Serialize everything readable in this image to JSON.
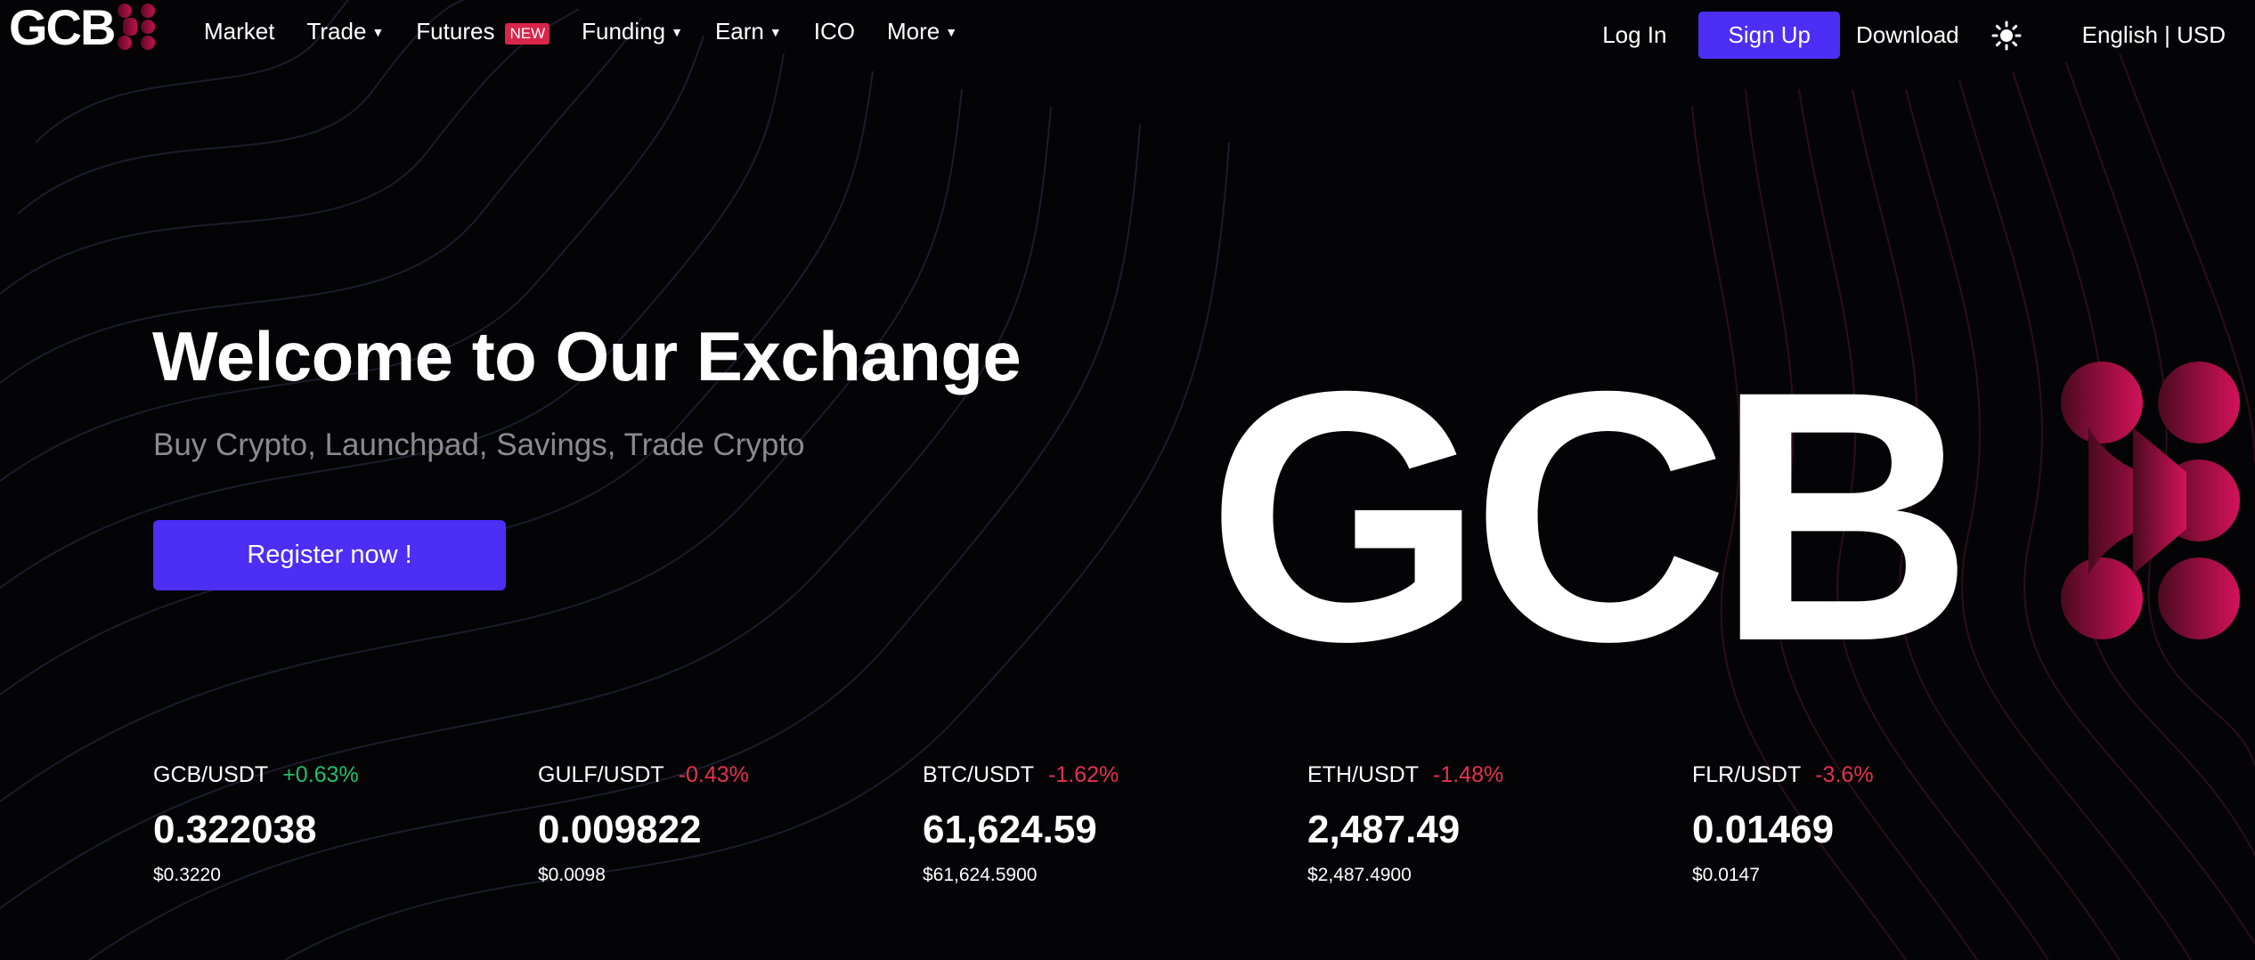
{
  "nav": {
    "logo": "GCB",
    "items": [
      {
        "label": "Market",
        "caret": false
      },
      {
        "label": "Trade",
        "caret": true
      },
      {
        "label": "Futures",
        "caret": false,
        "badge": "NEW"
      },
      {
        "label": "Funding",
        "caret": true
      },
      {
        "label": "Earn",
        "caret": true
      },
      {
        "label": "ICO",
        "caret": false
      },
      {
        "label": "More",
        "caret": true
      }
    ],
    "login": "Log In",
    "signup": "Sign Up",
    "download": "Download",
    "theme_icon": "sun-icon",
    "language": "English | USD"
  },
  "hero": {
    "title": "Welcome to Our Exchange",
    "subtitle": "Buy Crypto, Launchpad, Savings, Trade Crypto",
    "cta": "Register now !",
    "logo_text": "GCB"
  },
  "tickers": [
    {
      "pair": "GCB/USDT",
      "change": "+0.63%",
      "direction": "up",
      "price": "0.322038",
      "usd": "$0.3220"
    },
    {
      "pair": "GULF/USDT",
      "change": "-0.43%",
      "direction": "down",
      "price": "0.009822",
      "usd": "$0.0098"
    },
    {
      "pair": "BTC/USDT",
      "change": "-1.62%",
      "direction": "down",
      "price": "61,624.59",
      "usd": "$61,624.5900"
    },
    {
      "pair": "ETH/USDT",
      "change": "-1.48%",
      "direction": "down",
      "price": "2,487.49",
      "usd": "$2,487.4900"
    },
    {
      "pair": "FLR/USDT",
      "change": "-3.6%",
      "direction": "down",
      "price": "0.01469",
      "usd": "$0.0147"
    }
  ],
  "colors": {
    "background": "#040406",
    "accent": "#4c2ef5",
    "brand_magenta": "#c2104f",
    "up": "#1fbf6b",
    "down": "#e5314f"
  }
}
